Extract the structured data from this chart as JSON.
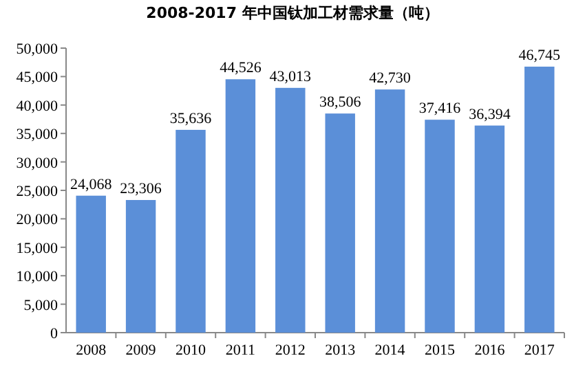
{
  "chart_data": {
    "type": "bar",
    "title": "2008-2017 年中国钛加工材需求量（吨）",
    "categories": [
      "2008",
      "2009",
      "2010",
      "2011",
      "2012",
      "2013",
      "2014",
      "2015",
      "2016",
      "2017"
    ],
    "values": [
      24068,
      23306,
      35636,
      44526,
      43013,
      38506,
      42730,
      37416,
      36394,
      46745
    ],
    "value_labels": [
      "24,068",
      "23,306",
      "35,636",
      "44,526",
      "43,013",
      "38,506",
      "42,730",
      "37,416",
      "36,394",
      "46,745"
    ],
    "color": "#5b8fd8",
    "ylim": [
      0,
      50000
    ],
    "yticks": [
      0,
      {
        "value": 5000,
        "label": "5,000"
      },
      {
        "value": 10000,
        "label": "10,000"
      },
      {
        "value": 15000,
        "label": "15,000"
      },
      {
        "value": 20000,
        "label": "20,000"
      },
      {
        "value": 25000,
        "label": "25,000"
      },
      {
        "value": 30000,
        "label": "30,000"
      },
      {
        "value": 35000,
        "label": "35,000"
      },
      {
        "value": 40000,
        "label": "40,000"
      },
      {
        "value": 45000,
        "label": "45,000"
      },
      {
        "value": 50000,
        "label": "50,000"
      }
    ],
    "grid": false
  }
}
